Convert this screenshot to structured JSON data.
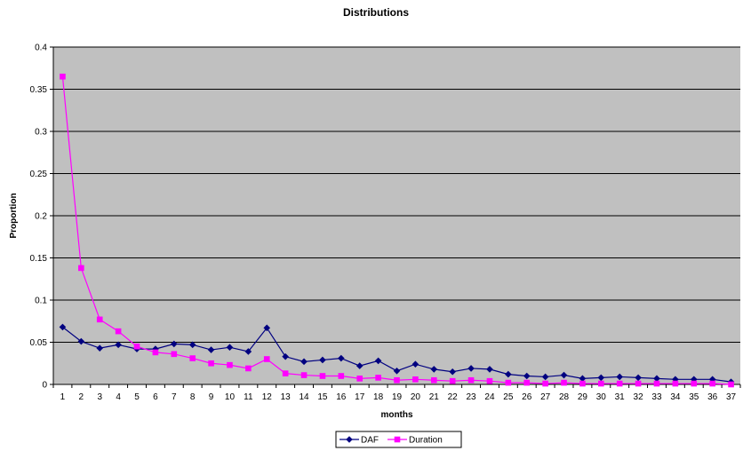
{
  "chart_data": {
    "type": "line",
    "title": "Distributions",
    "xlabel": "months",
    "ylabel": "Proportion",
    "ylim": [
      0,
      0.4
    ],
    "yticks": [
      0,
      0.05,
      0.1,
      0.15,
      0.2,
      0.25,
      0.3,
      0.35,
      0.4
    ],
    "ytick_labels": [
      "0",
      "0.05",
      "0.1",
      "0.15",
      "0.2",
      "0.25",
      "0.3",
      "0.35",
      "0.4"
    ],
    "categories": [
      "1",
      "2",
      "3",
      "4",
      "5",
      "6",
      "7",
      "8",
      "9",
      "10",
      "11",
      "12",
      "13",
      "14",
      "15",
      "16",
      "17",
      "18",
      "19",
      "20",
      "21",
      "22",
      "23",
      "24",
      "25",
      "26",
      "27",
      "28",
      "29",
      "30",
      "31",
      "32",
      "33",
      "34",
      "35",
      "36",
      "37"
    ],
    "grid": true,
    "plot_background": "#c0c0c0",
    "legend_position": "bottom-center",
    "series": [
      {
        "name": "DAF",
        "color": "#000080",
        "marker": "diamond",
        "values": [
          0.068,
          0.051,
          0.043,
          0.047,
          0.042,
          0.042,
          0.048,
          0.047,
          0.041,
          0.044,
          0.039,
          0.067,
          0.033,
          0.027,
          0.029,
          0.031,
          0.022,
          0.028,
          0.016,
          0.024,
          0.018,
          0.015,
          0.019,
          0.018,
          0.012,
          0.01,
          0.009,
          0.011,
          0.007,
          0.008,
          0.009,
          0.008,
          0.007,
          0.006,
          0.006,
          0.006,
          0.003
        ]
      },
      {
        "name": "Duration",
        "color": "#ff00ff",
        "marker": "square",
        "values": [
          0.365,
          0.138,
          0.077,
          0.063,
          0.045,
          0.038,
          0.036,
          0.031,
          0.025,
          0.023,
          0.019,
          0.03,
          0.013,
          0.011,
          0.01,
          0.01,
          0.007,
          0.008,
          0.005,
          0.006,
          0.005,
          0.004,
          0.005,
          0.004,
          0.002,
          0.002,
          0.001,
          0.002,
          0.001,
          0.001,
          0.001,
          0.001,
          0.001,
          0.001,
          0.001,
          0.001,
          0.0
        ]
      }
    ]
  }
}
